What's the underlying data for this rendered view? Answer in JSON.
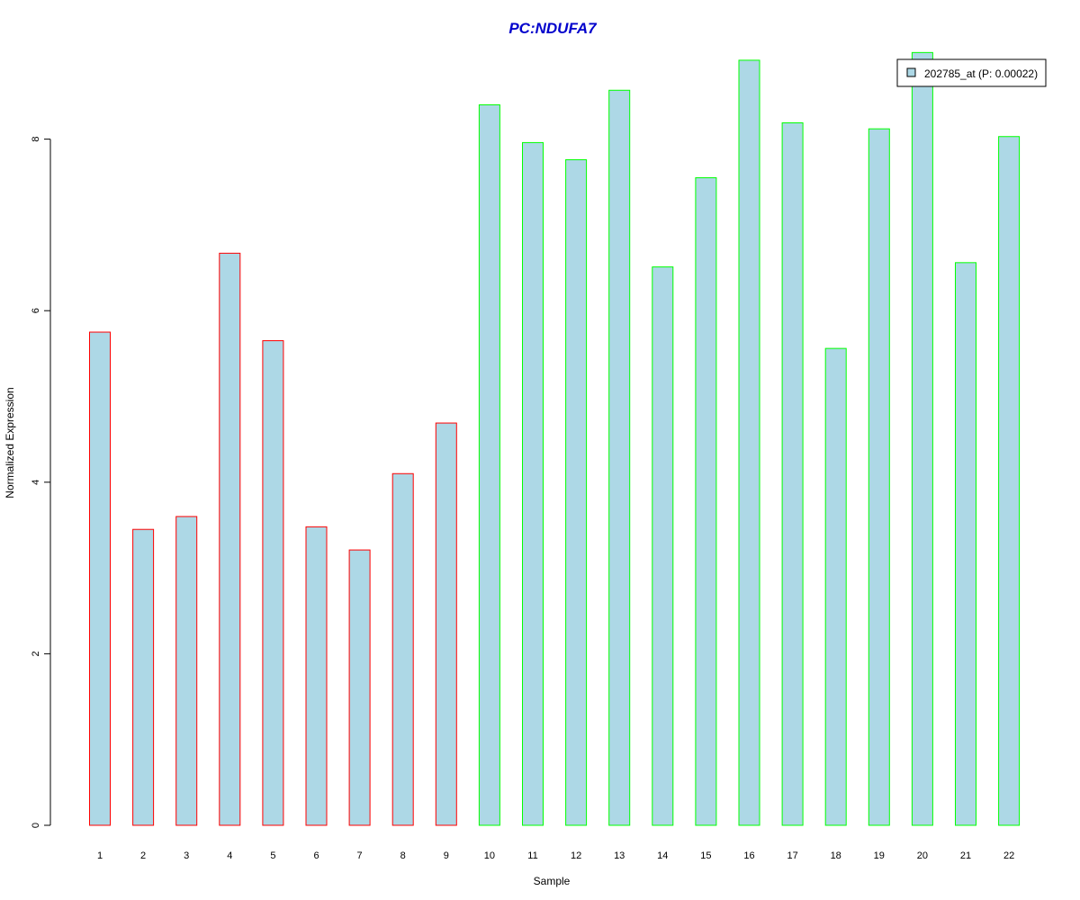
{
  "chart_data": {
    "type": "bar",
    "title": "PC:NDUFA7",
    "xlabel": "Sample",
    "ylabel": "Normalized Expression",
    "ylim": [
      0,
      9
    ],
    "yticks": [
      0,
      2,
      4,
      6,
      8
    ],
    "categories": [
      "1",
      "2",
      "3",
      "4",
      "5",
      "6",
      "7",
      "8",
      "9",
      "10",
      "11",
      "12",
      "13",
      "14",
      "15",
      "16",
      "17",
      "18",
      "19",
      "20",
      "21",
      "22"
    ],
    "values": [
      5.75,
      3.45,
      3.6,
      6.67,
      5.65,
      3.48,
      3.21,
      4.1,
      4.69,
      8.4,
      7.96,
      7.76,
      8.57,
      6.51,
      7.55,
      8.92,
      8.19,
      5.56,
      8.12,
      9.01,
      6.56,
      8.03
    ],
    "groups": [
      1,
      1,
      1,
      1,
      1,
      1,
      1,
      1,
      1,
      2,
      2,
      2,
      2,
      2,
      2,
      2,
      2,
      2,
      2,
      2,
      2,
      2
    ],
    "legend": {
      "label": "202785_at (P: 0.00022)",
      "position": "top-right"
    },
    "grid": false
  },
  "colors": {
    "title": "#0000CC",
    "bar_fill": "#ADD8E6",
    "group1_border": "#FF0000",
    "group2_border": "#00FF00",
    "axis": "#000000"
  }
}
